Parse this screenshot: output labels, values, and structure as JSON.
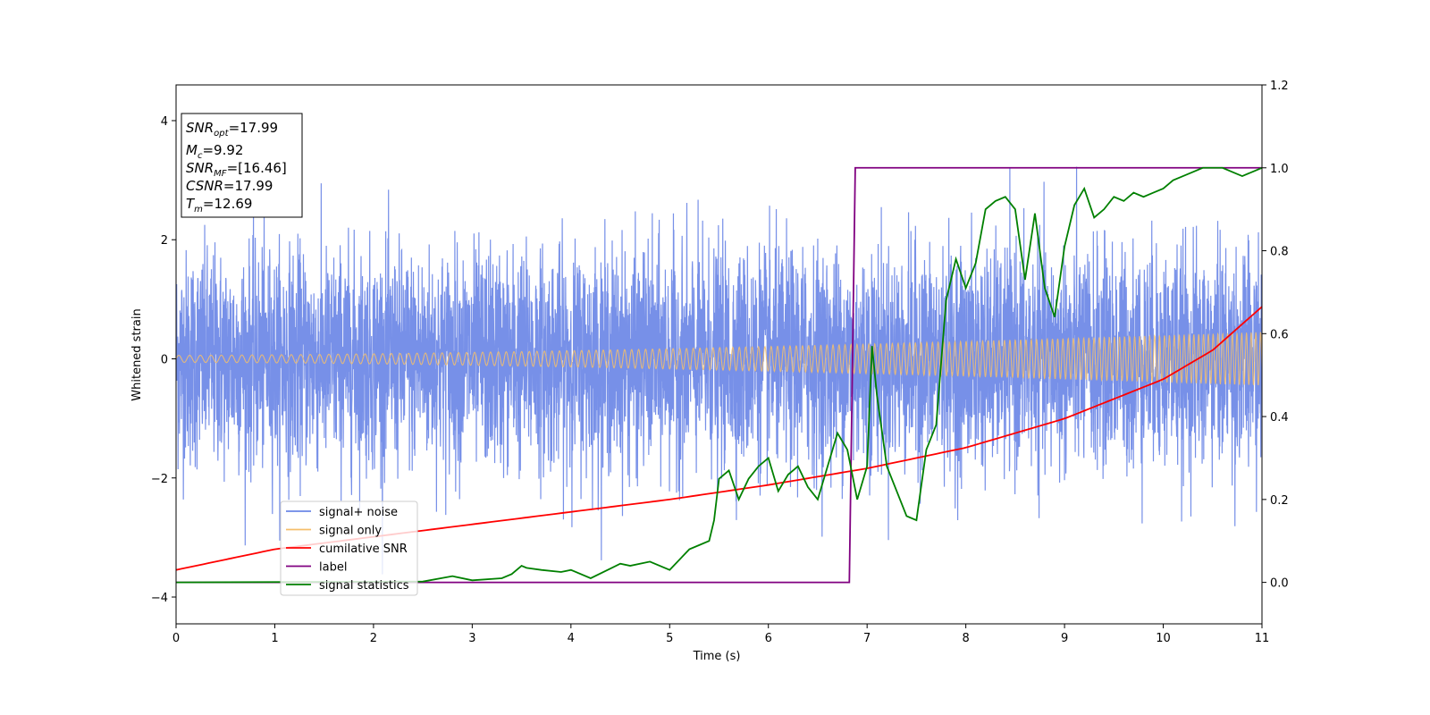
{
  "chart_data": {
    "type": "line",
    "xlabel": "Time (s)",
    "ylabel": "Whitened strain",
    "xlim": [
      0,
      11
    ],
    "ylim_left": [
      -4.45,
      4.6
    ],
    "ylim_right": [
      -0.1,
      1.2
    ],
    "x_ticks": [
      "0",
      "1",
      "2",
      "3",
      "4",
      "5",
      "6",
      "7",
      "8",
      "9",
      "10",
      "11"
    ],
    "y_ticks_left": [
      "4",
      "2",
      "0",
      "−2",
      "−4"
    ],
    "y_ticks_right": [
      "1.2",
      "1.0",
      "0.8",
      "0.6",
      "0.4",
      "0.2",
      "0.0"
    ],
    "grid": false,
    "legend_position": "lower-left",
    "stats_box": {
      "snr_opt": {
        "sym": "SNR",
        "sub": "opt",
        "value": "=17.99"
      },
      "mc": {
        "sym": "M",
        "sub": "c",
        "value": "=9.92"
      },
      "snr_mf": {
        "sym": "SNR",
        "sub": "MF",
        "value": "=[16.46]"
      },
      "csnr": {
        "sym": "CSNR",
        "sub": "",
        "value": "=17.99"
      },
      "tm": {
        "sym": "T",
        "sub": "m",
        "value": "=12.69"
      }
    },
    "series": [
      {
        "name": "signal+ noise",
        "color": "#6b87e6",
        "axis": "left",
        "description_values": {
          "noise_sigma": 0.9,
          "approx_range": [
            -4.0,
            4.2
          ]
        }
      },
      {
        "name": "signal only",
        "color": "#f5bf6b",
        "axis": "left",
        "amplitude_points": {
          "x": [
            0,
            11
          ],
          "y": [
            0.06,
            0.45
          ]
        }
      },
      {
        "name": "cumilative SNR",
        "color": "#ff0000",
        "axis": "right",
        "x": [
          0,
          1,
          2,
          3,
          4,
          5,
          6,
          7,
          8,
          9,
          10,
          10.5,
          11
        ],
        "y": [
          0.03,
          0.08,
          0.11,
          0.14,
          0.17,
          0.2,
          0.235,
          0.275,
          0.325,
          0.395,
          0.49,
          0.56,
          0.665
        ]
      },
      {
        "name": "label",
        "color": "#800080",
        "axis": "right",
        "x": [
          0,
          6.82,
          6.88,
          11
        ],
        "y": [
          0.0,
          0.0,
          1.0,
          1.0
        ]
      },
      {
        "name": "signal statistics",
        "color": "#008000",
        "axis": "right",
        "x": [
          0,
          2.5,
          2.8,
          3.0,
          3.3,
          3.4,
          3.5,
          3.55,
          3.7,
          3.9,
          4.0,
          4.2,
          4.5,
          4.6,
          4.8,
          5.0,
          5.2,
          5.3,
          5.4,
          5.45,
          5.5,
          5.6,
          5.7,
          5.8,
          5.9,
          6.0,
          6.1,
          6.2,
          6.3,
          6.4,
          6.5,
          6.6,
          6.7,
          6.8,
          6.9,
          7.0,
          7.05,
          7.1,
          7.2,
          7.3,
          7.4,
          7.5,
          7.6,
          7.7,
          7.8,
          7.9,
          8.0,
          8.1,
          8.2,
          8.3,
          8.4,
          8.5,
          8.6,
          8.7,
          8.8,
          8.9,
          9.0,
          9.1,
          9.2,
          9.3,
          9.4,
          9.5,
          9.6,
          9.7,
          9.8,
          9.9,
          10.0,
          10.1,
          10.2,
          10.3,
          10.4,
          10.6,
          10.7,
          10.8,
          10.9,
          11.0
        ],
        "y": [
          0.0,
          0.002,
          0.015,
          0.005,
          0.01,
          0.02,
          0.04,
          0.035,
          0.03,
          0.025,
          0.03,
          0.01,
          0.045,
          0.04,
          0.05,
          0.03,
          0.08,
          0.09,
          0.1,
          0.15,
          0.25,
          0.27,
          0.2,
          0.25,
          0.28,
          0.3,
          0.22,
          0.26,
          0.28,
          0.23,
          0.2,
          0.28,
          0.36,
          0.32,
          0.2,
          0.28,
          0.57,
          0.45,
          0.28,
          0.22,
          0.16,
          0.15,
          0.32,
          0.38,
          0.68,
          0.78,
          0.71,
          0.77,
          0.9,
          0.92,
          0.93,
          0.9,
          0.73,
          0.89,
          0.71,
          0.64,
          0.81,
          0.91,
          0.95,
          0.88,
          0.9,
          0.93,
          0.92,
          0.94,
          0.93,
          0.94,
          0.95,
          0.97,
          0.98,
          0.99,
          1.0,
          1.0,
          0.99,
          0.98,
          0.99,
          1.0
        ]
      }
    ]
  }
}
